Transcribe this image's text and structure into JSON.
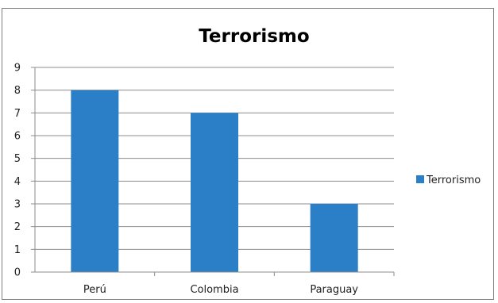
{
  "chart_data": {
    "type": "bar",
    "title": "Terrorismo",
    "categories": [
      "Perú",
      "Colombia",
      "Paraguay"
    ],
    "series": [
      {
        "name": "Terrorismo",
        "values": [
          8,
          7,
          3
        ],
        "color": "#2a7fc6"
      }
    ],
    "xlabel": "",
    "ylabel": "",
    "ylim": [
      0,
      9
    ],
    "yticks": [
      0,
      1,
      2,
      3,
      4,
      5,
      6,
      7,
      8,
      9
    ],
    "grid": true,
    "legend_position": "right"
  }
}
